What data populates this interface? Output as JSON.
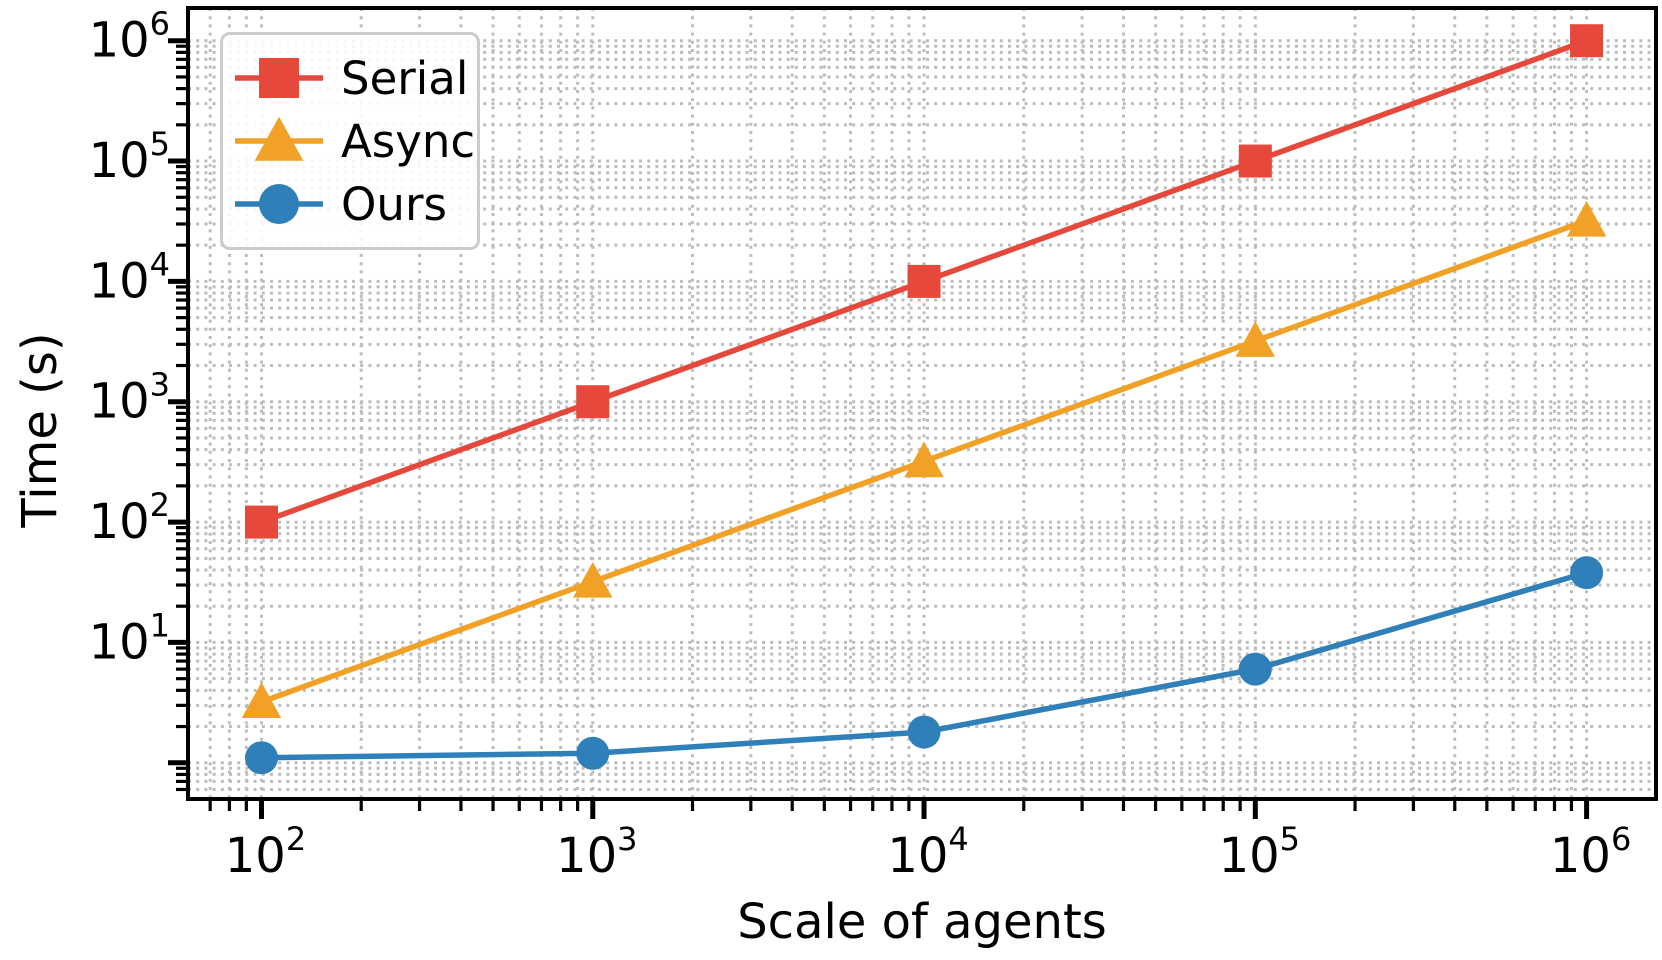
{
  "figure": {
    "background": "#ffffff",
    "text_color": "#000000",
    "grid_color": "#bdbdbd",
    "spine_color": "#000000",
    "legend_border_color": "#cccccc"
  },
  "chart_data": {
    "type": "line",
    "title": "",
    "xlabel": "Scale of agents",
    "ylabel": "Time (s)",
    "x_scale": "log",
    "y_scale": "log",
    "grid": "both, dotted",
    "legend_position": "upper-left",
    "x": [
      100,
      1000,
      10000,
      100000,
      1000000
    ],
    "series": [
      {
        "name": "Serial",
        "marker": "square",
        "color": "#e6493c",
        "values": [
          100,
          1000,
          10000,
          100000,
          1000000
        ]
      },
      {
        "name": "Async",
        "marker": "triangle",
        "color": "#f1a226",
        "values": [
          3.2,
          32,
          320,
          3200,
          32000
        ]
      },
      {
        "name": "Ours",
        "marker": "circle",
        "color": "#2f7fb8",
        "values": [
          1.1,
          1.2,
          1.8,
          6.0,
          38
        ]
      }
    ],
    "xlim": [
      60,
      1620000
    ],
    "ylim": [
      0.5,
      1870000
    ],
    "x_tick_labels": [
      "10^2",
      "10^3",
      "10^4",
      "10^5",
      "10^6"
    ],
    "y_tick_labels": [
      "10^1",
      "10^2",
      "10^3",
      "10^4",
      "10^5",
      "10^6"
    ],
    "x_labeled_exponents": [
      2,
      3,
      4,
      5,
      6
    ],
    "y_labeled_exponents": [
      1,
      2,
      3,
      4,
      5,
      6
    ],
    "y_major_exponents": [
      0,
      1,
      2,
      3,
      4,
      5,
      6
    ],
    "x_major_exponents": [
      2,
      3,
      4,
      5,
      6
    ]
  }
}
